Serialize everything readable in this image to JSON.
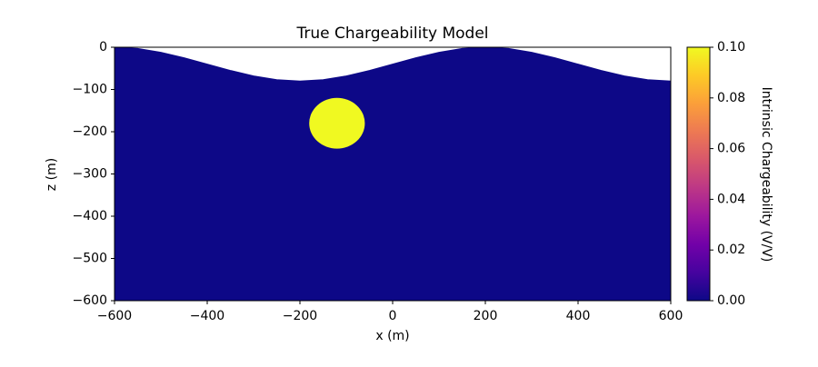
{
  "chart_data": {
    "type": "model-section",
    "title": "True Chargeability Model",
    "xlabel": "x (m)",
    "ylabel": "z (m)",
    "colorbar_label": "Intrinsic Chargeability (V/V)",
    "xlim": [
      -600,
      600
    ],
    "ylim": [
      -600,
      0
    ],
    "xticks": [
      {
        "value": -600,
        "label": "−600"
      },
      {
        "value": -400,
        "label": "−400"
      },
      {
        "value": -200,
        "label": "−200"
      },
      0,
      200,
      400,
      600
    ],
    "yticks": [
      0,
      {
        "value": -100,
        "label": "−100"
      },
      {
        "value": -200,
        "label": "−200"
      },
      {
        "value": -300,
        "label": "−300"
      },
      {
        "value": -400,
        "label": "−400"
      },
      {
        "value": -500,
        "label": "−500"
      },
      {
        "value": -600,
        "label": "−600"
      }
    ],
    "clim": [
      0,
      0.1
    ],
    "cticks": [
      {
        "value": 0,
        "label": "0.00"
      },
      {
        "value": 0.02,
        "label": "0.02"
      },
      {
        "value": 0.04,
        "label": "0.04"
      },
      {
        "value": 0.06,
        "label": "0.06"
      },
      {
        "value": 0.08,
        "label": "0.08"
      },
      {
        "value": 0.1,
        "label": "0.10"
      }
    ],
    "colormap": [
      "#0d0887",
      "#46039f",
      "#7201a8",
      "#9c179e",
      "#bd3786",
      "#d8576b",
      "#ed7953",
      "#fb9f3a",
      "#fdca26",
      "#f0f921"
    ],
    "background": 0,
    "topography": {
      "x": [
        -600,
        -550,
        -500,
        -450,
        -400,
        -350,
        -300,
        -250,
        -200,
        -150,
        -100,
        -50,
        0,
        50,
        100,
        150,
        200,
        250,
        300,
        350,
        400,
        450,
        500,
        550,
        600
      ],
      "z": [
        0,
        -3,
        -12,
        -25,
        -40,
        -55,
        -68,
        -77,
        -80,
        -77,
        -68,
        -55,
        -40,
        -25,
        -12,
        -3,
        0,
        -3,
        -12,
        -25,
        -40,
        -55,
        -68,
        -77,
        -80
      ]
    },
    "sphere": {
      "center": [
        -120,
        -180
      ],
      "radius": 60,
      "value": 0.1
    }
  }
}
